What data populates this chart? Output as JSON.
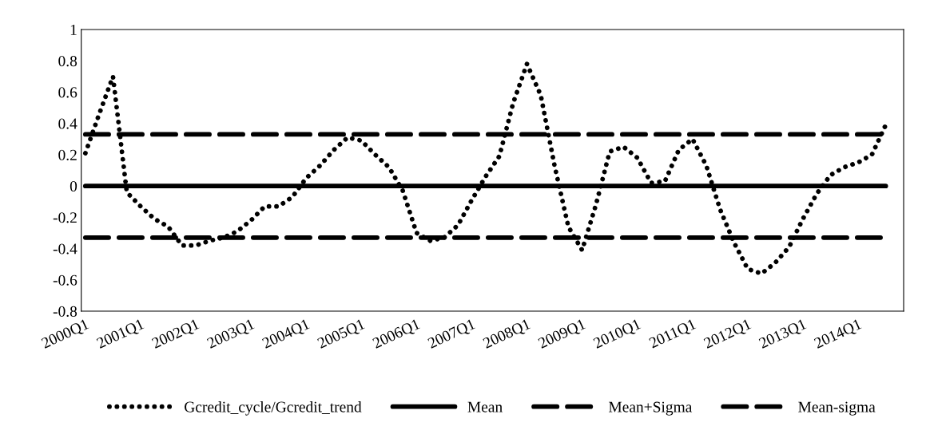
{
  "chart_data": {
    "type": "line",
    "categories": [
      "2000Q1",
      null,
      null,
      null,
      "2001Q1",
      null,
      null,
      null,
      "2002Q1",
      null,
      null,
      null,
      "2003Q1",
      null,
      null,
      null,
      "2004Q1",
      null,
      null,
      null,
      "2005Q1",
      null,
      null,
      null,
      "2006Q1",
      null,
      null,
      null,
      "2007Q1",
      null,
      null,
      null,
      "2008Q1",
      null,
      null,
      null,
      "2009Q1",
      null,
      null,
      null,
      "2010Q1",
      null,
      null,
      null,
      "2011Q1",
      null,
      null,
      null,
      "2012Q1",
      null,
      null,
      null,
      "2013Q1",
      null,
      null,
      null,
      "2014Q1",
      null,
      null,
      null
    ],
    "series": [
      {
        "name": "Gcredit_cycle/Gcredit_trend",
        "color": "#000000",
        "line_style": "dotted",
        "values": [
          0.21,
          0.46,
          0.7,
          -0.04,
          -0.13,
          -0.21,
          -0.26,
          -0.38,
          -0.38,
          -0.35,
          -0.33,
          -0.29,
          -0.22,
          -0.13,
          -0.13,
          -0.07,
          0.05,
          0.13,
          0.23,
          0.31,
          0.29,
          0.2,
          0.12,
          -0.03,
          -0.3,
          -0.35,
          -0.33,
          -0.25,
          -0.09,
          0.06,
          0.19,
          0.53,
          0.78,
          0.58,
          0.13,
          -0.26,
          -0.41,
          -0.12,
          0.22,
          0.25,
          0.18,
          0.02,
          0.03,
          0.23,
          0.3,
          0.13,
          -0.15,
          -0.36,
          -0.53,
          -0.56,
          -0.49,
          -0.39,
          -0.21,
          -0.05,
          0.07,
          0.12,
          0.15,
          0.2,
          0.39,
          null
        ]
      },
      {
        "name": "Mean",
        "color": "#000000",
        "line_style": "solid",
        "values": [
          0,
          0,
          0,
          0,
          0,
          0,
          0,
          0,
          0,
          0,
          0,
          0,
          0,
          0,
          0,
          0,
          0,
          0,
          0,
          0,
          0,
          0,
          0,
          0,
          0,
          0,
          0,
          0,
          0,
          0,
          0,
          0,
          0,
          0,
          0,
          0,
          0,
          0,
          0,
          0,
          0,
          0,
          0,
          0,
          0,
          0,
          0,
          0,
          0,
          0,
          0,
          0,
          0,
          0,
          0,
          0,
          0,
          0,
          0,
          null
        ]
      },
      {
        "name": "Mean+Sigma",
        "color": "#000000",
        "line_style": "dashed",
        "values": [
          0.33,
          0.33,
          0.33,
          0.33,
          0.33,
          0.33,
          0.33,
          0.33,
          0.33,
          0.33,
          0.33,
          0.33,
          0.33,
          0.33,
          0.33,
          0.33,
          0.33,
          0.33,
          0.33,
          0.33,
          0.33,
          0.33,
          0.33,
          0.33,
          0.33,
          0.33,
          0.33,
          0.33,
          0.33,
          0.33,
          0.33,
          0.33,
          0.33,
          0.33,
          0.33,
          0.33,
          0.33,
          0.33,
          0.33,
          0.33,
          0.33,
          0.33,
          0.33,
          0.33,
          0.33,
          0.33,
          0.33,
          0.33,
          0.33,
          0.33,
          0.33,
          0.33,
          0.33,
          0.33,
          0.33,
          0.33,
          0.33,
          0.33,
          0.33,
          null
        ]
      },
      {
        "name": "Mean-sigma",
        "color": "#000000",
        "line_style": "dashed",
        "values": [
          -0.33,
          -0.33,
          -0.33,
          -0.33,
          -0.33,
          -0.33,
          -0.33,
          -0.33,
          -0.33,
          -0.33,
          -0.33,
          -0.33,
          -0.33,
          -0.33,
          -0.33,
          -0.33,
          -0.33,
          -0.33,
          -0.33,
          -0.33,
          -0.33,
          -0.33,
          -0.33,
          -0.33,
          -0.33,
          -0.33,
          -0.33,
          -0.33,
          -0.33,
          -0.33,
          -0.33,
          -0.33,
          -0.33,
          -0.33,
          -0.33,
          -0.33,
          -0.33,
          -0.33,
          -0.33,
          -0.33,
          -0.33,
          -0.33,
          -0.33,
          -0.33,
          -0.33,
          -0.33,
          -0.33,
          -0.33,
          -0.33,
          -0.33,
          -0.33,
          -0.33,
          -0.33,
          -0.33,
          -0.33,
          -0.33,
          -0.33,
          -0.33,
          -0.33,
          null
        ]
      }
    ],
    "ylim": [
      -0.8,
      1
    ],
    "yticks": [
      -0.8,
      -0.6,
      -0.4,
      -0.2,
      0,
      0.2,
      0.4,
      0.6,
      0.8,
      1
    ],
    "grid": false,
    "legend": "bottom",
    "marker": "none"
  }
}
